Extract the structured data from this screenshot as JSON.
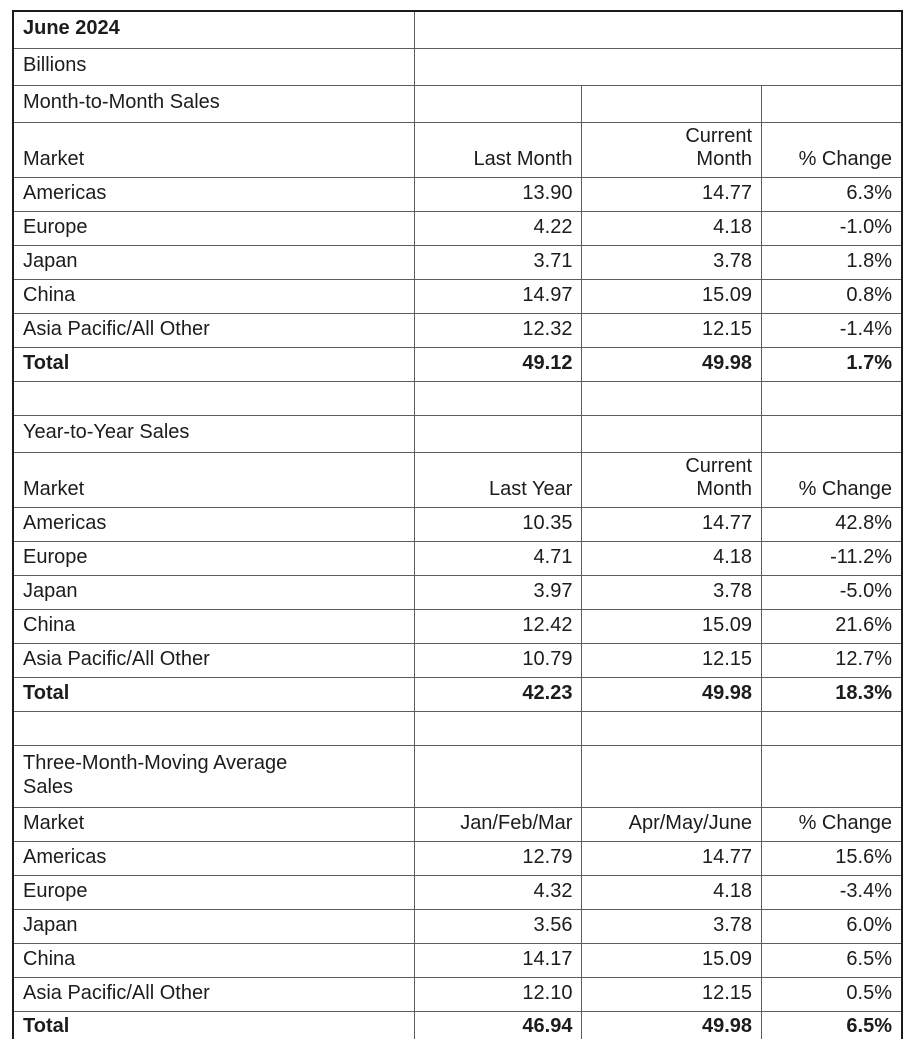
{
  "report": {
    "title": "June 2024",
    "units": "Billions"
  },
  "sections": [
    {
      "name": "Month-to-Month Sales",
      "headers": {
        "market": "Market",
        "a": "Last Month",
        "b": "Current\nMonth",
        "pct": "% Change"
      },
      "rows": [
        {
          "market": "Americas",
          "a": "13.90",
          "b": "14.77",
          "pct": "6.3%"
        },
        {
          "market": "Europe",
          "a": "4.22",
          "b": "4.18",
          "pct": "-1.0%"
        },
        {
          "market": "Japan",
          "a": "3.71",
          "b": "3.78",
          "pct": "1.8%"
        },
        {
          "market": "China",
          "a": "14.97",
          "b": "15.09",
          "pct": "0.8%"
        },
        {
          "market": "Asia Pacific/All Other",
          "a": "12.32",
          "b": "12.15",
          "pct": "-1.4%"
        }
      ],
      "total": {
        "market": "Total",
        "a": "49.12",
        "b": "49.98",
        "pct": "1.7%"
      }
    },
    {
      "name": "Year-to-Year Sales",
      "headers": {
        "market": "Market",
        "a": "Last Year",
        "b": "Current\nMonth",
        "pct": "% Change"
      },
      "rows": [
        {
          "market": "Americas",
          "a": "10.35",
          "b": "14.77",
          "pct": "42.8%"
        },
        {
          "market": "Europe",
          "a": "4.71",
          "b": "4.18",
          "pct": "-11.2%"
        },
        {
          "market": "Japan",
          "a": "3.97",
          "b": "3.78",
          "pct": "-5.0%"
        },
        {
          "market": "China",
          "a": "12.42",
          "b": "15.09",
          "pct": "21.6%"
        },
        {
          "market": "Asia Pacific/All Other",
          "a": "10.79",
          "b": "12.15",
          "pct": "12.7%"
        }
      ],
      "total": {
        "market": "Total",
        "a": "42.23",
        "b": "49.98",
        "pct": "18.3%"
      }
    },
    {
      "name": "Three-Month-Moving Average\nSales",
      "headers": {
        "market": "Market",
        "a": "Jan/Feb/Mar",
        "b": "Apr/May/June",
        "pct": "% Change"
      },
      "rows": [
        {
          "market": "Americas",
          "a": "12.79",
          "b": "14.77",
          "pct": "15.6%"
        },
        {
          "market": "Europe",
          "a": "4.32",
          "b": "4.18",
          "pct": "-3.4%"
        },
        {
          "market": "Japan",
          "a": "3.56",
          "b": "3.78",
          "pct": "6.0%"
        },
        {
          "market": "China",
          "a": "14.17",
          "b": "15.09",
          "pct": "6.5%"
        },
        {
          "market": "Asia Pacific/All Other",
          "a": "12.10",
          "b": "12.15",
          "pct": "0.5%"
        }
      ],
      "total": {
        "market": "Total",
        "a": "46.94",
        "b": "49.98",
        "pct": "6.5%"
      }
    }
  ],
  "colors": {
    "background": "#ffffff",
    "grid_line": "#5d5d5d",
    "outer_border": "#1b1b1b",
    "text": "#1c1c1c"
  }
}
